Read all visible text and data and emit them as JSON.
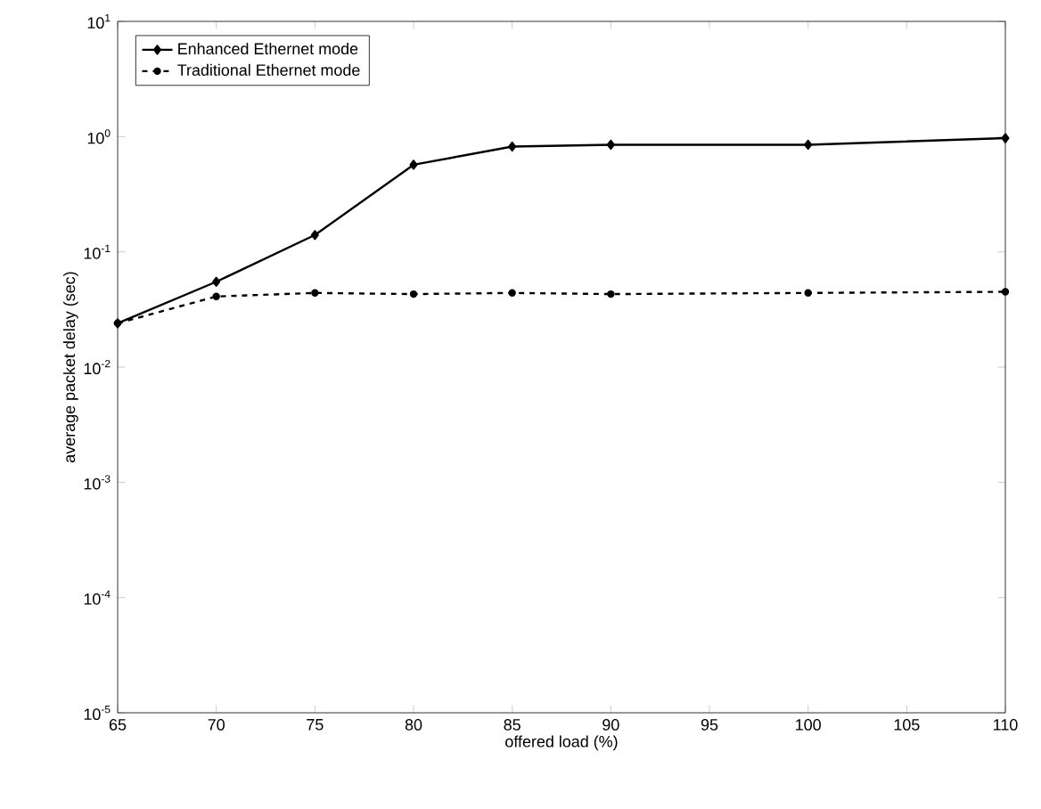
{
  "chart_data": {
    "type": "line",
    "xlabel": "offered load (%)",
    "ylabel": "average packet delay (sec)",
    "x": [
      65,
      70,
      75,
      80,
      85,
      90,
      100,
      110
    ],
    "series": [
      {
        "name": "Enhanced Ethernet mode",
        "color": "#000000",
        "marker": "diamond",
        "line_style": "solid",
        "values": [
          0.024,
          0.055,
          0.14,
          0.57,
          0.82,
          0.85,
          0.85,
          0.97
        ]
      },
      {
        "name": "Traditional Ethernet mode",
        "color": "#000000",
        "marker": "circle",
        "line_style": "dashed",
        "values": [
          0.024,
          0.041,
          0.044,
          0.043,
          0.044,
          0.043,
          0.044,
          0.045
        ]
      }
    ],
    "log": "y",
    "xlim": [
      65,
      110
    ],
    "ylim": [
      1e-05,
      10
    ],
    "xticks": [
      65,
      70,
      75,
      80,
      85,
      90,
      95,
      100,
      105,
      110
    ],
    "yticks": [
      {
        "value": 1e-05,
        "label": "10$^{-5}$"
      },
      {
        "value": 0.0001,
        "label": "10$^{-4}$"
      },
      {
        "value": 0.001,
        "label": "10$^{-3}$"
      },
      {
        "value": 0.01,
        "label": "10$^{-2}$"
      },
      {
        "value": 0.1,
        "label": "10$^{-1}$"
      },
      {
        "value": 1,
        "label": "10$^{0}$"
      },
      {
        "value": 10,
        "label": "10$^{1}$"
      }
    ],
    "grid": false,
    "legend": "top left"
  }
}
